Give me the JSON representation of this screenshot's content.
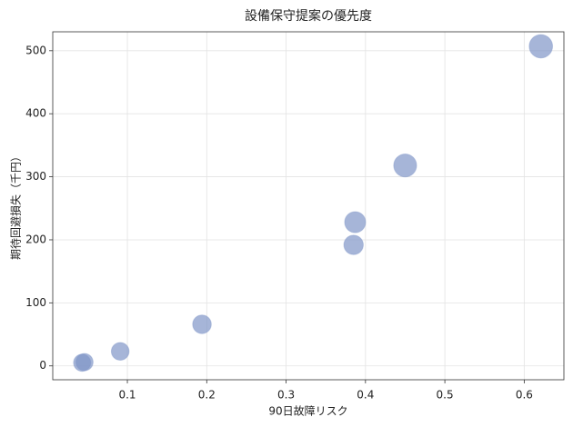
{
  "chart_data": {
    "type": "scatter",
    "title": "設備保守提案の優先度",
    "xlabel": "90日故障リスク",
    "ylabel": "期待回避損失（千円）",
    "x": [
      0.043,
      0.046,
      0.091,
      0.194,
      0.385,
      0.387,
      0.45,
      0.621
    ],
    "y": [
      5,
      6,
      23,
      66,
      192,
      228,
      318,
      507
    ],
    "sizes": [
      280,
      280,
      300,
      330,
      360,
      420,
      500,
      520
    ],
    "color": "#8096c8",
    "xlim": [
      0.006,
      0.65
    ],
    "ylim": [
      -22,
      530
    ],
    "xticks": [
      0.1,
      0.2,
      0.3,
      0.4,
      0.5,
      0.6
    ],
    "yticks": [
      0,
      100,
      200,
      300,
      400,
      500
    ],
    "grid": true
  }
}
